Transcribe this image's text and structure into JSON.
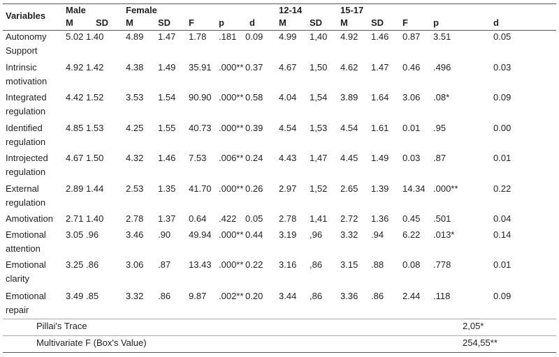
{
  "header": {
    "title": "Variables",
    "groups": [
      "Male",
      "Female",
      "12-14",
      "15-17"
    ],
    "columns": [
      "M",
      "SD",
      "M",
      "SD",
      "F",
      "p",
      "d",
      "M",
      "SD",
      "M",
      "SD",
      "F",
      "p",
      "d"
    ]
  },
  "rows": [
    {
      "variable": "Autonomy Support",
      "values": [
        "5.02",
        "1.40",
        "4.89",
        "1.47",
        "1.78",
        ".181",
        "0.09",
        "4.99",
        "1,40",
        "4.92",
        "1.46",
        "0.87",
        "3.51",
        "0.05"
      ]
    },
    {
      "variable": "Intrinsic motivation",
      "values": [
        "4.92",
        "1.42",
        "4.38",
        "1.49",
        "35.91",
        ".000**",
        "0.37",
        "4.67",
        "1,50",
        "4.62",
        "1.47",
        "0.46",
        ".496",
        "0.03"
      ]
    },
    {
      "variable": "Integrated regulation",
      "values": [
        "4.42",
        "1.52",
        "3.53",
        "1.54",
        "90.90",
        ".000**",
        "0.58",
        "4.04",
        "1,54",
        "3.89",
        "1.64",
        "3.06",
        ".08*",
        "0.09"
      ]
    },
    {
      "variable": "Identified regulation",
      "values": [
        "4.85",
        "1.53",
        "4.25",
        "1.55",
        "40.73",
        ".000**",
        "0.39",
        "4.54",
        "1,53",
        "4.54",
        "1.61",
        "0.01",
        ".95",
        "0.00"
      ]
    },
    {
      "variable": "Introjected regulation",
      "values": [
        "4.67",
        "1.50",
        "4.32",
        "1.46",
        "7.53",
        ".006**",
        "0.24",
        "4.43",
        "1,47",
        "4.45",
        "1.49",
        "0.03",
        ".87",
        "0.01"
      ]
    },
    {
      "variable": "External regulation",
      "values": [
        "2.89",
        "1.44",
        "2.53",
        "1.35",
        "41.70",
        ".000**",
        "0.26",
        "2.97",
        "1,52",
        "2.65",
        "1.39",
        "14.34",
        ".000**",
        "0.22"
      ]
    },
    {
      "variable": "Amotivation",
      "values": [
        "2.71",
        "1.40",
        "2.78",
        "1.37",
        "0.64",
        ".422",
        "0.05",
        "2.78",
        "1,41",
        "2.72",
        "1.36",
        "0.45",
        ".501",
        "0.04"
      ]
    },
    {
      "variable": "Emotional attention",
      "values": [
        "3.05",
        ".96",
        "3.46",
        ".90",
        "49.94",
        ".000**",
        "0.44",
        "3.19",
        ",96",
        "3.32",
        ".94",
        "6.22",
        ".013*",
        "0.14"
      ]
    },
    {
      "variable": "Emotional clarity",
      "values": [
        "3.25",
        ".86",
        "3.06",
        ".87",
        "13.43",
        ".000**",
        "0.22",
        "3.16",
        ",86",
        "3.15",
        ".88",
        "0.08",
        ".778",
        "0.01"
      ]
    },
    {
      "variable": "Emotional repair",
      "values": [
        "3.49",
        ".85",
        "3.32",
        ".86",
        "9.87",
        ".002**",
        "0.20",
        "3.44",
        ",86",
        "3.36",
        ".86",
        "2.44",
        ".118",
        "0.09"
      ]
    }
  ],
  "footer": [
    {
      "label": "Pillai's Trace",
      "value": "2,05*"
    },
    {
      "label": "Multivariate F (Box's Value)",
      "value": "254,55**"
    }
  ]
}
